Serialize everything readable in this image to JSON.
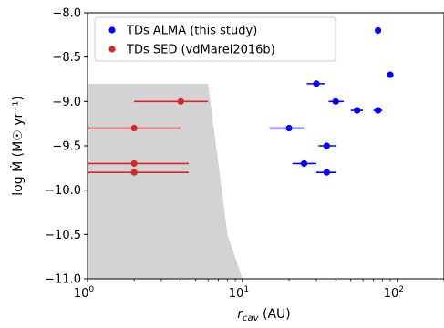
{
  "chart_data": {
    "type": "scatter",
    "x_scale": "log",
    "xlim": [
      1,
      200
    ],
    "ylim": [
      -11.0,
      -8.0
    ],
    "xlabel_main": "r",
    "xlabel_sub": "cav",
    "xlabel_unit": " (AU)",
    "ylabel": "log Ṁ (M☉ yr⁻¹)",
    "x_ticks": [
      {
        "value": 1,
        "label": "10",
        "exp": "0"
      },
      {
        "value": 10,
        "label": "10",
        "exp": "1"
      },
      {
        "value": 100,
        "label": "10",
        "exp": "2"
      }
    ],
    "y_ticks": [
      {
        "value": -8.0,
        "label": "−8.0"
      },
      {
        "value": -8.5,
        "label": "−8.5"
      },
      {
        "value": -9.0,
        "label": "−9.0"
      },
      {
        "value": -9.5,
        "label": "−9.5"
      },
      {
        "value": -10.0,
        "label": "−10.0"
      },
      {
        "value": -10.5,
        "label": "−10.5"
      },
      {
        "value": -11.0,
        "label": "−11.0"
      }
    ],
    "legend_position": "top-left",
    "shaded_region": {
      "color": "#d3d3d3",
      "polygon": [
        [
          1,
          -8.8
        ],
        [
          6,
          -8.8
        ],
        [
          8,
          -10.5
        ],
        [
          10,
          -11.0
        ],
        [
          1,
          -11.0
        ]
      ]
    },
    "series": [
      {
        "name": "TDs ALMA (this study)",
        "color": "#0000ff",
        "points": [
          {
            "x": 75,
            "y": -8.2,
            "xerr_lo": 72,
            "xerr_hi": 78
          },
          {
            "x": 90,
            "y": -8.7,
            "xerr_lo": 90,
            "xerr_hi": 90
          },
          {
            "x": 30,
            "y": -8.8,
            "xerr_lo": 26,
            "xerr_hi": 34
          },
          {
            "x": 40,
            "y": -9.0,
            "xerr_lo": 36,
            "xerr_hi": 45
          },
          {
            "x": 55,
            "y": -9.1,
            "xerr_lo": 50,
            "xerr_hi": 60
          },
          {
            "x": 75,
            "y": -9.1,
            "xerr_lo": 70,
            "xerr_hi": 80
          },
          {
            "x": 20,
            "y": -9.3,
            "xerr_lo": 15,
            "xerr_hi": 25
          },
          {
            "x": 35,
            "y": -9.5,
            "xerr_lo": 31,
            "xerr_hi": 40
          },
          {
            "x": 25,
            "y": -9.7,
            "xerr_lo": 21,
            "xerr_hi": 30
          },
          {
            "x": 35,
            "y": -9.8,
            "xerr_lo": 30,
            "xerr_hi": 40
          }
        ]
      },
      {
        "name": "TDs SED (vdMarel2016b)",
        "color": "#d62728",
        "points": [
          {
            "x": 4,
            "y": -9.0,
            "xerr_lo": 2,
            "xerr_hi": 6
          },
          {
            "x": 2,
            "y": -9.3,
            "xerr_lo": 1,
            "xerr_hi": 4
          },
          {
            "x": 2,
            "y": -9.7,
            "xerr_lo": 1,
            "xerr_hi": 4.5
          },
          {
            "x": 2,
            "y": -9.8,
            "xerr_lo": 1,
            "xerr_hi": 4.5
          }
        ]
      }
    ]
  }
}
